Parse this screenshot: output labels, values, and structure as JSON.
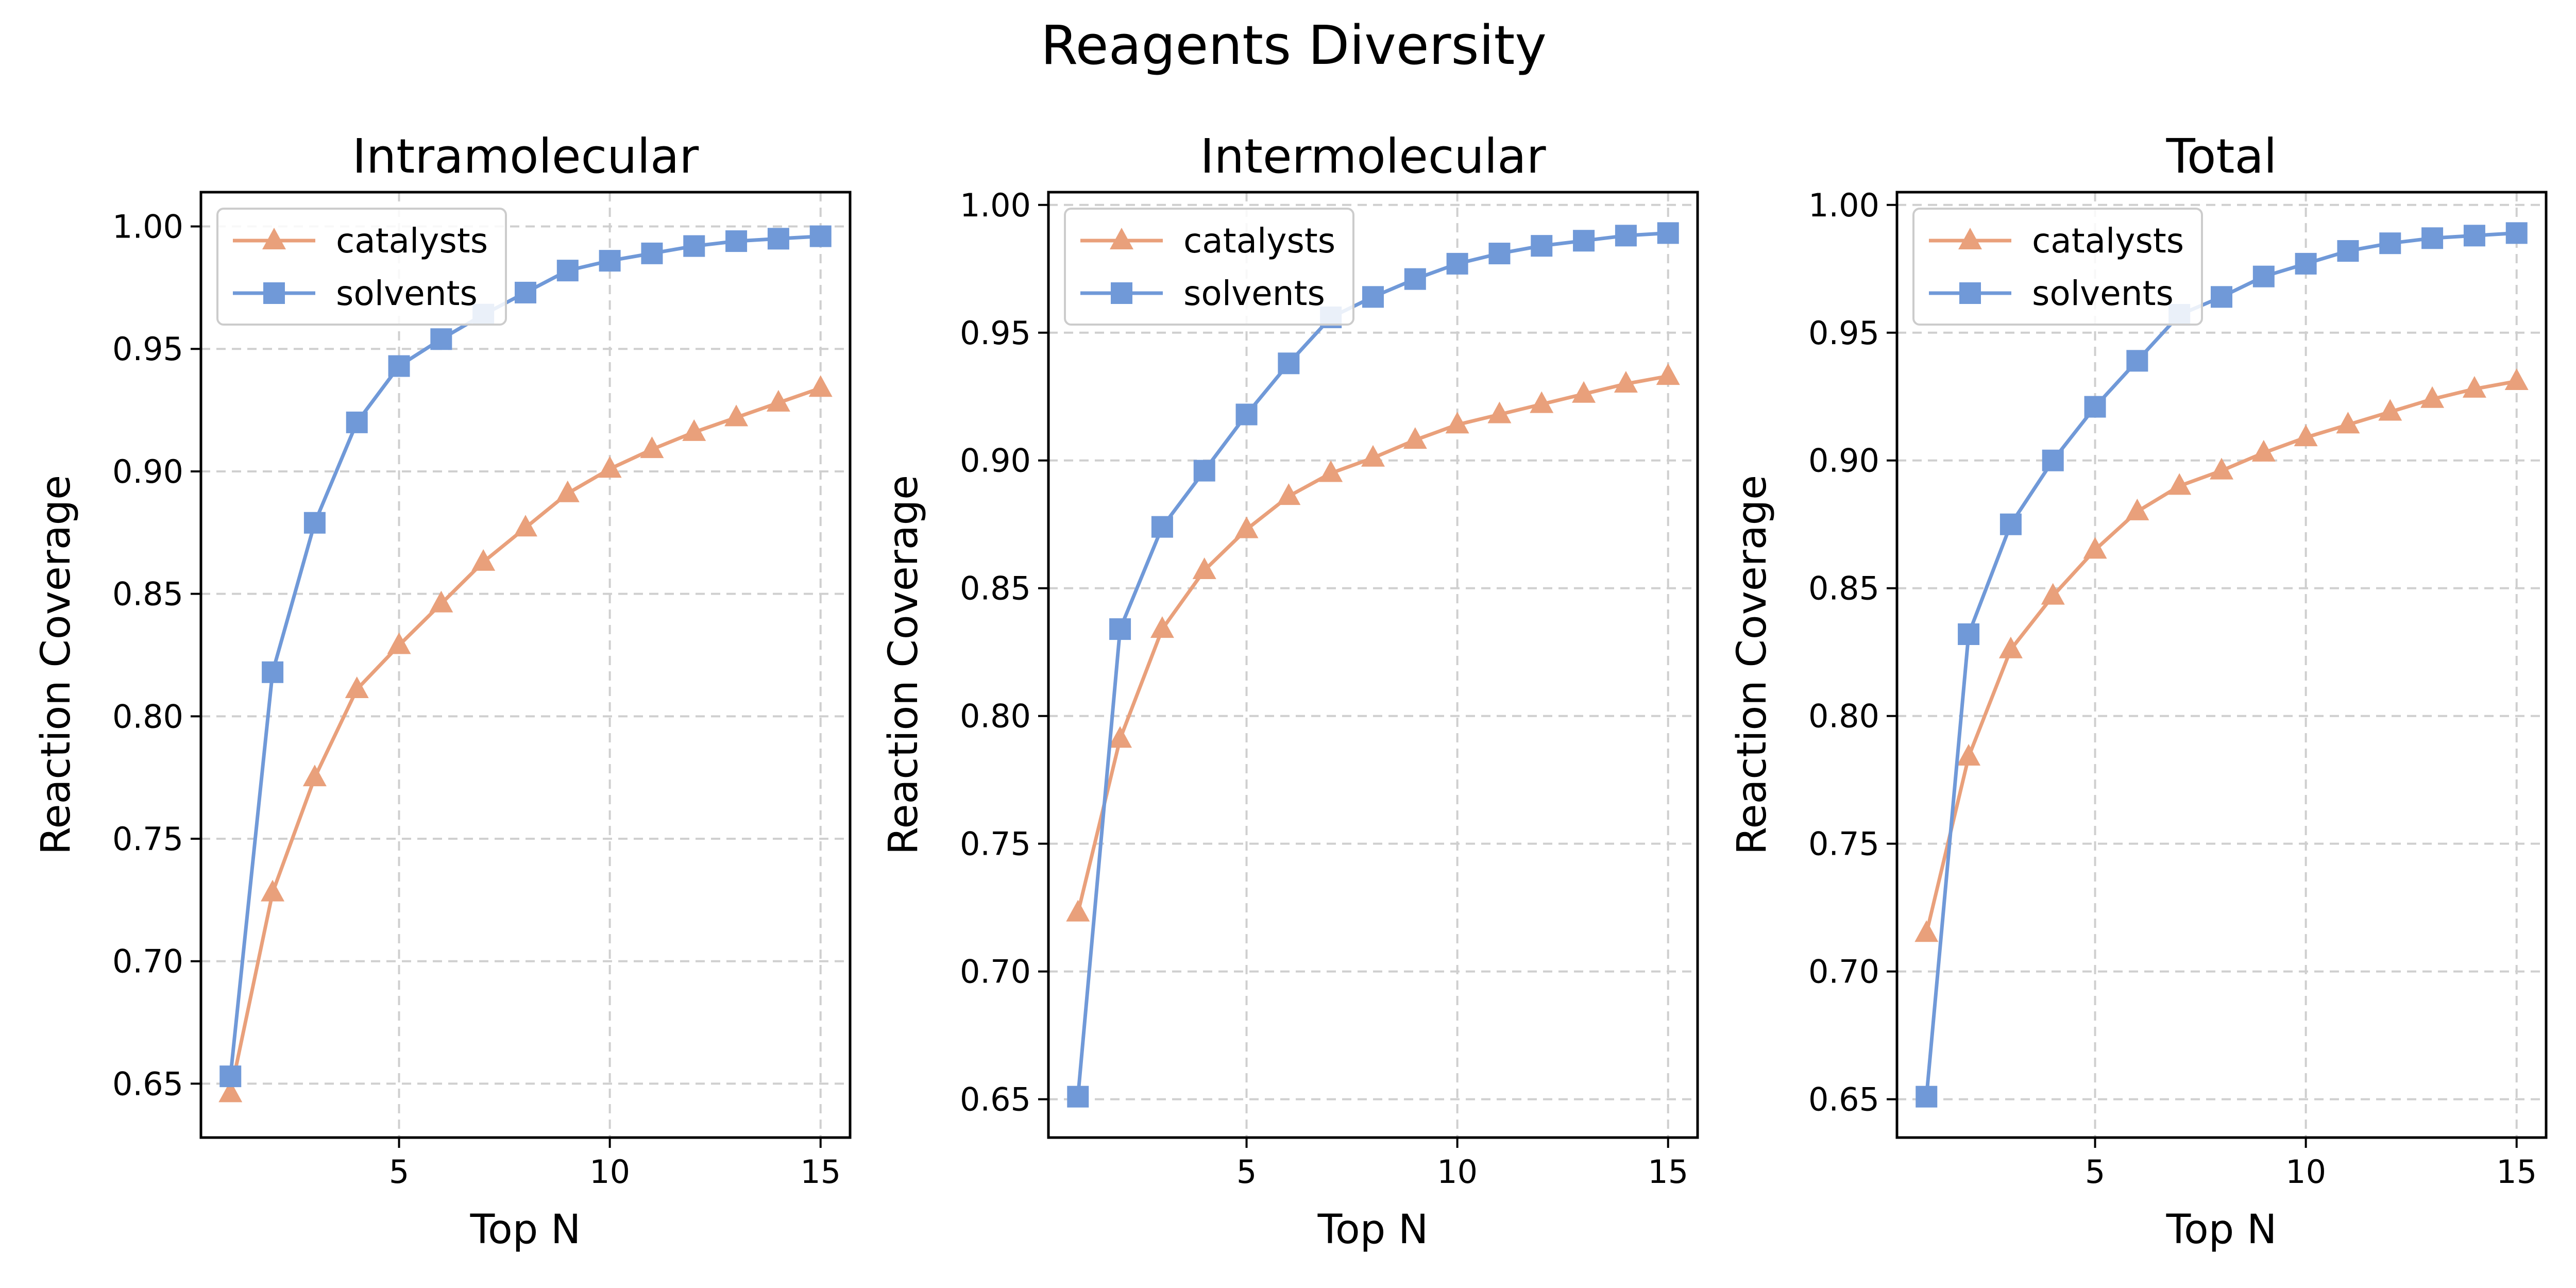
{
  "figure": {
    "title": "Reagents Diversity"
  },
  "colors": {
    "catalysts": "#e9a07b",
    "solvents": "#7099d8"
  },
  "chart_data": [
    {
      "type": "line",
      "title": "Intramolecular",
      "xlabel": "Top N",
      "ylabel": "Reaction Coverage",
      "xlim": [
        0.3,
        15.7
      ],
      "ylim": [
        0.628,
        1.014
      ],
      "xticks": [
        5,
        10,
        15
      ],
      "yticks": [
        0.65,
        0.7,
        0.75,
        0.8,
        0.85,
        0.9,
        0.95,
        1.0
      ],
      "ytick_labels": [
        "0.65",
        "0.70",
        "0.75",
        "0.80",
        "0.85",
        "0.90",
        "0.95",
        "1.00"
      ],
      "grid": true,
      "legend": "upper-left",
      "x": [
        1,
        2,
        3,
        4,
        5,
        6,
        7,
        8,
        9,
        10,
        11,
        12,
        13,
        14,
        15
      ],
      "series": [
        {
          "name": "catalysts",
          "marker": "triangle",
          "values": [
            0.646,
            0.728,
            0.775,
            0.811,
            0.829,
            0.846,
            0.863,
            0.877,
            0.891,
            0.901,
            0.909,
            0.916,
            0.922,
            0.928,
            0.934
          ]
        },
        {
          "name": "solvents",
          "marker": "square",
          "values": [
            0.653,
            0.818,
            0.879,
            0.92,
            0.943,
            0.954,
            0.964,
            0.973,
            0.982,
            0.986,
            0.989,
            0.992,
            0.994,
            0.995,
            0.996
          ]
        }
      ]
    },
    {
      "type": "line",
      "title": "Intermolecular",
      "xlabel": "Top N",
      "ylabel": "Reaction Coverage",
      "xlim": [
        0.3,
        15.7
      ],
      "ylim": [
        0.635,
        1.005
      ],
      "xticks": [
        5,
        10,
        15
      ],
      "yticks": [
        0.65,
        0.7,
        0.75,
        0.8,
        0.85,
        0.9,
        0.95,
        1.0
      ],
      "ytick_labels": [
        "0.65",
        "0.70",
        "0.75",
        "0.80",
        "0.85",
        "0.90",
        "0.95",
        "1.00"
      ],
      "grid": true,
      "legend": "upper-left",
      "x": [
        1,
        2,
        3,
        4,
        5,
        6,
        7,
        8,
        9,
        10,
        11,
        12,
        13,
        14,
        15
      ],
      "series": [
        {
          "name": "catalysts",
          "marker": "triangle",
          "values": [
            0.723,
            0.791,
            0.834,
            0.857,
            0.873,
            0.886,
            0.895,
            0.901,
            0.908,
            0.914,
            0.918,
            0.922,
            0.926,
            0.93,
            0.933
          ]
        },
        {
          "name": "solvents",
          "marker": "square",
          "values": [
            0.651,
            0.834,
            0.874,
            0.896,
            0.918,
            0.938,
            0.956,
            0.964,
            0.971,
            0.977,
            0.981,
            0.984,
            0.986,
            0.988,
            0.989
          ]
        }
      ]
    },
    {
      "type": "line",
      "title": "Total",
      "xlabel": "Top N",
      "ylabel": "Reaction Coverage",
      "xlim": [
        0.3,
        15.7
      ],
      "ylim": [
        0.635,
        1.005
      ],
      "xticks": [
        5,
        10,
        15
      ],
      "yticks": [
        0.65,
        0.7,
        0.75,
        0.8,
        0.85,
        0.9,
        0.95,
        1.0
      ],
      "ytick_labels": [
        "0.65",
        "0.70",
        "0.75",
        "0.80",
        "0.85",
        "0.90",
        "0.95",
        "1.00"
      ],
      "grid": true,
      "legend": "upper-left",
      "x": [
        1,
        2,
        3,
        4,
        5,
        6,
        7,
        8,
        9,
        10,
        11,
        12,
        13,
        14,
        15
      ],
      "series": [
        {
          "name": "catalysts",
          "marker": "triangle",
          "values": [
            0.715,
            0.784,
            0.826,
            0.847,
            0.865,
            0.88,
            0.89,
            0.896,
            0.903,
            0.909,
            0.914,
            0.919,
            0.924,
            0.928,
            0.931
          ]
        },
        {
          "name": "solvents",
          "marker": "square",
          "values": [
            0.651,
            0.832,
            0.875,
            0.9,
            0.921,
            0.939,
            0.957,
            0.964,
            0.972,
            0.977,
            0.982,
            0.985,
            0.987,
            0.988,
            0.989
          ]
        }
      ]
    }
  ]
}
